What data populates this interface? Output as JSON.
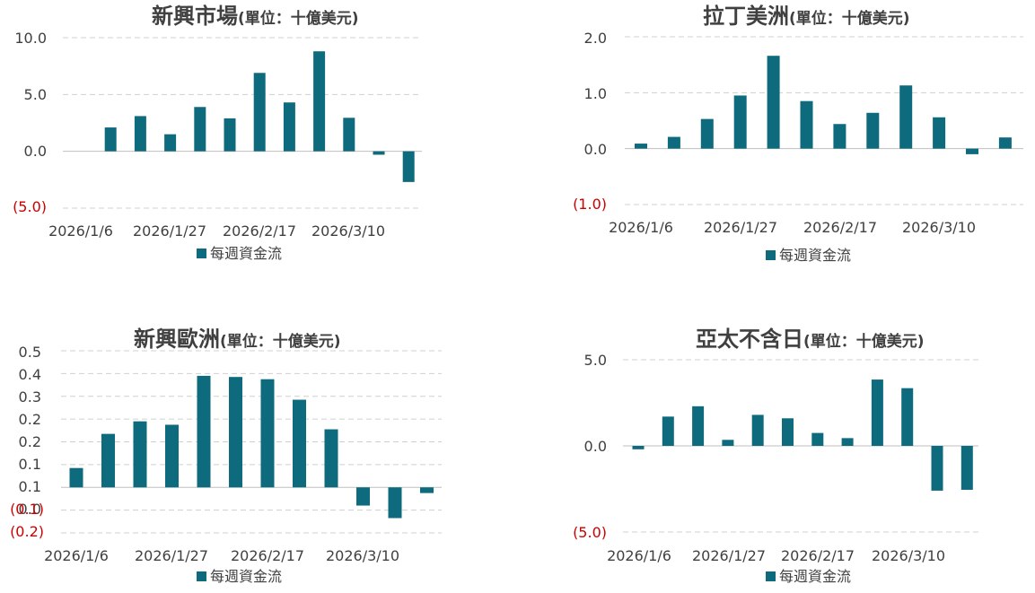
{
  "colors": {
    "bar": "#0e6b7d",
    "negative_label": "#cc0000"
  },
  "chart_data": [
    {
      "type": "bar",
      "title": "新興市場",
      "subtitle": "(單位：十億美元)",
      "legend": "每週資金流",
      "legend_position": "bottom",
      "grid": true,
      "x_ticks": [
        "2026/1/6",
        "2026/1/27",
        "2026/2/17",
        "2026/3/10"
      ],
      "y_ticks": [
        "10.0",
        "5.0",
        "0.0",
        "(5.0)"
      ],
      "ylim": [
        -5,
        10
      ],
      "values": [
        0,
        2.1,
        3.1,
        1.5,
        3.9,
        2.9,
        6.9,
        4.3,
        8.8,
        2.95,
        -0.3,
        -2.7
      ]
    },
    {
      "type": "bar",
      "title": "拉丁美洲",
      "subtitle": "(單位：十億美元)",
      "legend": "每週資金流",
      "legend_position": "bottom",
      "grid": true,
      "x_ticks": [
        "2026/1/6",
        "2026/1/27",
        "2026/2/17",
        "2026/3/10"
      ],
      "y_ticks": [
        "2.0",
        "1.0",
        "0.0",
        "(1.0)"
      ],
      "ylim": [
        -1,
        2
      ],
      "values": [
        0.09,
        0.21,
        0.53,
        0.95,
        1.66,
        0.85,
        0.44,
        0.64,
        1.13,
        0.56,
        -0.1,
        0.2
      ]
    },
    {
      "type": "bar",
      "title": "新興歐洲",
      "subtitle": "(單位：十億美元)",
      "legend": "每週資金流",
      "legend_position": "bottom",
      "grid": true,
      "x_ticks": [
        "2026/1/6",
        "2026/1/27",
        "2026/2/17",
        "2026/3/10"
      ],
      "y_ticks": [
        "0.5",
        "0.4",
        "0.3",
        "0.2",
        "0.2",
        "0.1",
        "0.1",
        "0.0",
        "(0.1)",
        "(0.2)"
      ],
      "ylim": [
        -0.2,
        0.6
      ],
      "values": [
        0.085,
        0.235,
        0.29,
        0.275,
        0.49,
        0.485,
        0.475,
        0.385,
        0.255,
        -0.08,
        -0.135,
        -0.025
      ]
    },
    {
      "type": "bar",
      "title": "亞太不含日",
      "subtitle": "(單位：十億美元)",
      "legend": "每週資金流",
      "legend_position": "bottom",
      "grid": true,
      "x_ticks": [
        "2026/1/6",
        "2026/1/27",
        "2026/2/17",
        "2026/3/10"
      ],
      "y_ticks": [
        "5.0",
        "0.0",
        "(5.0)"
      ],
      "ylim": [
        -5,
        5
      ],
      "values": [
        -0.2,
        1.7,
        2.3,
        0.35,
        1.8,
        1.6,
        0.75,
        0.45,
        3.85,
        3.35,
        -2.6,
        -2.55
      ]
    }
  ]
}
